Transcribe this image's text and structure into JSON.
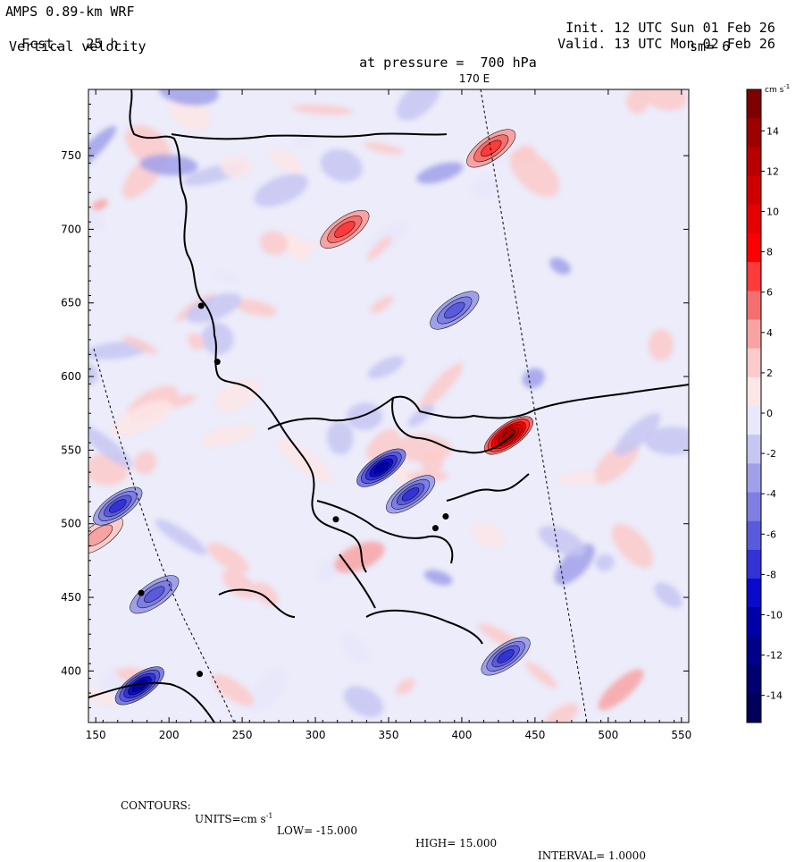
{
  "header": {
    "model": "AMPS 0.89-km WRF",
    "fcst_label": "Fcst.",
    "fcst_value": "25 h",
    "field": "Vertical velocity",
    "init_label": "Init.",
    "init_value": "12 UTC Sun 01 Feb 26",
    "valid_label": "Valid.",
    "valid_value": "13 UTC Mon 02 Feb 26",
    "pressure_label": "at pressure =",
    "pressure_value": "700 hPa",
    "smoothing": "sm= 6"
  },
  "meridian_label": "170 E",
  "colorbar": {
    "units_label": "cm s",
    "units_exp": "-1",
    "ticks": [
      "14",
      "12",
      "10",
      "8",
      "6",
      "4",
      "2",
      "0",
      "-2",
      "-4",
      "-6",
      "-8",
      "-10",
      "-12",
      "-14"
    ],
    "colors": [
      "#7f0000",
      "#9e0000",
      "#b80000",
      "#d00000",
      "#e60000",
      "#ff0000",
      "#ff3a3a",
      "#f46f6f",
      "#f8a3a3",
      "#fbcaca",
      "#fde6e6",
      "#e8e8fa",
      "#c6c6f2",
      "#a0a0ea",
      "#7e7ee4",
      "#5a5add",
      "#3232d6",
      "#0a0acc",
      "#0000aa",
      "#00008a",
      "#000070",
      "#00005a"
    ]
  },
  "footer": {
    "contours_label": "CONTOURS:",
    "units_text": "UNITS=cm s",
    "units_exp": "-1",
    "low_text": "LOW= -15.000",
    "high_text": "HIGH= 15.000",
    "interval_text": "INTERVAL= 1.0000"
  },
  "chart_data": {
    "type": "heatmap",
    "title": "Vertical velocity",
    "variable": "Vertical velocity",
    "units": "cm s-1",
    "level": "700 hPa",
    "xlim": [
      145,
      555
    ],
    "ylim": [
      365,
      795
    ],
    "x_ticks": [
      150,
      200,
      250,
      300,
      350,
      400,
      450,
      500,
      550
    ],
    "y_ticks": [
      400,
      450,
      500,
      550,
      600,
      650,
      700,
      750
    ],
    "contour_low": -15.0,
    "contour_high": 15.0,
    "contour_interval": 1.0,
    "color_scale_range": [
      -15,
      15
    ],
    "colorbar_ticks": [
      14,
      12,
      10,
      8,
      6,
      4,
      2,
      0,
      -2,
      -4,
      -6,
      -8,
      -10,
      -12,
      -14
    ],
    "features": [
      {
        "name": "strong updraft maximum",
        "x": 432,
        "y": 560,
        "value": 12
      },
      {
        "name": "updraft",
        "x": 152,
        "y": 492,
        "value": 4
      },
      {
        "name": "updraft",
        "x": 320,
        "y": 700,
        "value": 6
      },
      {
        "name": "updraft",
        "x": 420,
        "y": 755,
        "value": 6
      },
      {
        "name": "downdraft band",
        "x": 165,
        "y": 512,
        "value": -8
      },
      {
        "name": "downdraft band",
        "x": 345,
        "y": 538,
        "value": -10
      },
      {
        "name": "downdraft band",
        "x": 365,
        "y": 520,
        "value": -8
      },
      {
        "name": "downdraft band",
        "x": 430,
        "y": 410,
        "value": -8
      },
      {
        "name": "downdraft",
        "x": 190,
        "y": 452,
        "value": -6
      },
      {
        "name": "downdraft",
        "x": 395,
        "y": 645,
        "value": -6
      },
      {
        "name": "downdraft",
        "x": 180,
        "y": 390,
        "value": -10
      }
    ],
    "stations": [
      {
        "x": 222,
        "y": 648
      },
      {
        "x": 233,
        "y": 610
      },
      {
        "x": 314,
        "y": 503
      },
      {
        "x": 382,
        "y": 497
      },
      {
        "x": 389,
        "y": 505
      },
      {
        "x": 181,
        "y": 453
      },
      {
        "x": 221,
        "y": 398
      }
    ]
  }
}
